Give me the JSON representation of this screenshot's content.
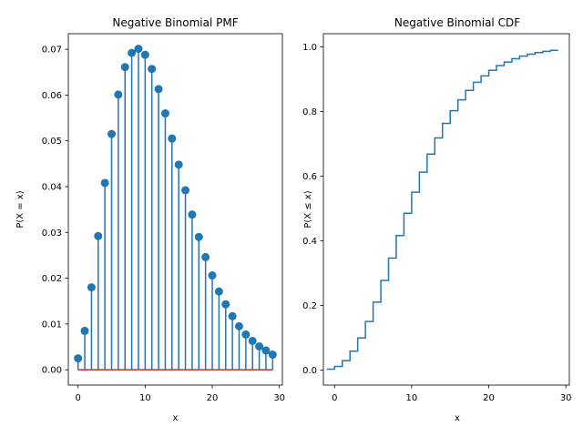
{
  "chart_data": [
    {
      "type": "stem",
      "title": "Negative Binomial PMF",
      "xlabel": "x",
      "ylabel": "P(X = x)",
      "xlim": [
        -1.45,
        30.45
      ],
      "ylim": [
        -0.00335,
        0.0734
      ],
      "xticks": [
        0,
        10,
        20,
        30
      ],
      "yticks": [
        0.0,
        0.01,
        0.02,
        0.03,
        0.04,
        0.05,
        0.06,
        0.07
      ],
      "ytick_labels": [
        "0.00",
        "0.01",
        "0.02",
        "0.03",
        "0.04",
        "0.05",
        "0.06",
        "0.07"
      ],
      "grid": false,
      "x": [
        0,
        1,
        2,
        3,
        4,
        5,
        6,
        7,
        8,
        9,
        10,
        11,
        12,
        13,
        14,
        15,
        16,
        17,
        18,
        19,
        20,
        21,
        22,
        23,
        24,
        25,
        26,
        27,
        28,
        29
      ],
      "values": [
        0.0025,
        0.0085,
        0.018,
        0.0292,
        0.0408,
        0.0515,
        0.0601,
        0.0661,
        0.0692,
        0.0701,
        0.0688,
        0.0657,
        0.0613,
        0.056,
        0.0505,
        0.0448,
        0.0392,
        0.0339,
        0.029,
        0.0246,
        0.0206,
        0.0171,
        0.0143,
        0.0117,
        0.0095,
        0.0077,
        0.0063,
        0.0051,
        0.0042,
        0.0033
      ],
      "colors": {
        "stem": "#1f77b4",
        "marker": "#1f77b4",
        "baseline": "#d62728"
      }
    },
    {
      "type": "step",
      "title": "Negative Binomial CDF",
      "xlabel": "x",
      "ylabel": "P(X ≤ x)",
      "xlim": [
        -1.45,
        30.45
      ],
      "ylim": [
        -0.0468,
        1.0405
      ],
      "xticks": [
        0,
        10,
        20,
        30
      ],
      "yticks": [
        0.0,
        0.2,
        0.4,
        0.6,
        0.8,
        1.0
      ],
      "ytick_labels": [
        "0.0",
        "0.2",
        "0.4",
        "0.6",
        "0.8",
        "1.0"
      ],
      "grid": false,
      "x": [
        0,
        1,
        2,
        3,
        4,
        5,
        6,
        7,
        8,
        9,
        10,
        11,
        12,
        13,
        14,
        15,
        16,
        17,
        18,
        19,
        20,
        21,
        22,
        23,
        24,
        25,
        26,
        27,
        28,
        29
      ],
      "values": [
        0.0025,
        0.011,
        0.029,
        0.058,
        0.099,
        0.15,
        0.21,
        0.277,
        0.346,
        0.416,
        0.485,
        0.55,
        0.612,
        0.668,
        0.718,
        0.763,
        0.802,
        0.836,
        0.865,
        0.89,
        0.91,
        0.927,
        0.942,
        0.953,
        0.963,
        0.971,
        0.977,
        0.982,
        0.986,
        0.989
      ],
      "colors": {
        "line": "#1f77b4"
      }
    }
  ]
}
